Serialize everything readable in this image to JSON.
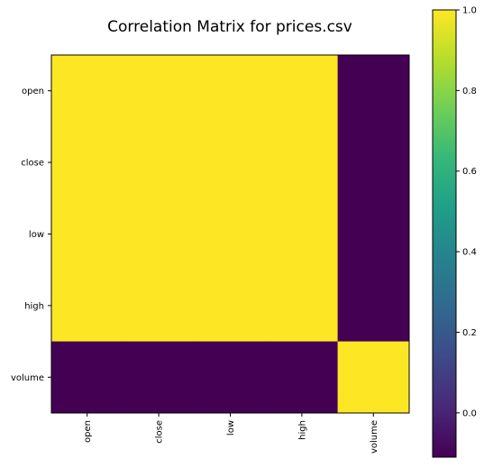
{
  "chart_data": {
    "type": "heatmap",
    "title": "Correlation Matrix for prices.csv",
    "xlabel": "",
    "ylabel": "",
    "x_labels": [
      "open",
      "close",
      "low",
      "high",
      "volume"
    ],
    "y_labels": [
      "open",
      "close",
      "low",
      "high",
      "volume"
    ],
    "values": [
      [
        1.0,
        1.0,
        1.0,
        1.0,
        -0.11
      ],
      [
        1.0,
        1.0,
        1.0,
        1.0,
        -0.11
      ],
      [
        1.0,
        1.0,
        1.0,
        1.0,
        -0.11
      ],
      [
        1.0,
        1.0,
        1.0,
        1.0,
        -0.11
      ],
      [
        -0.11,
        -0.11,
        -0.11,
        -0.11,
        1.0
      ]
    ],
    "colormap": "viridis",
    "colorbar": {
      "vmin": -0.11,
      "vmax": 1.0,
      "ticks": [
        "0.0",
        "0.2",
        "0.4",
        "0.6",
        "0.8",
        "1.0"
      ],
      "tick_values": [
        0.0,
        0.2,
        0.4,
        0.6,
        0.8,
        1.0
      ],
      "placement": "right"
    },
    "x_tick_rotation": "vertical",
    "grid": false
  },
  "colors": {
    "viridis_stops": [
      "#440154",
      "#482878",
      "#3e4989",
      "#31688e",
      "#26828e",
      "#1f9e89",
      "#35b779",
      "#6ece58",
      "#b5de2b",
      "#fde725"
    ],
    "axis": "#000000",
    "background": "#ffffff"
  }
}
